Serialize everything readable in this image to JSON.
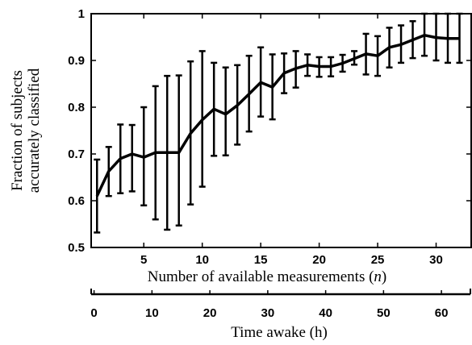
{
  "chart_data": {
    "type": "line",
    "xlabel_parts": [
      "Number of available measurements (",
      "n",
      ")"
    ],
    "xlabel2": "Time awake (h)",
    "ylabel_line1": "Fraction of subjects",
    "ylabel_line2": "accurately classified",
    "xlim": [
      0.5,
      33
    ],
    "ylim": [
      0.5,
      1
    ],
    "xticks": [
      5,
      10,
      15,
      20,
      25,
      30
    ],
    "yticks": [
      0.5,
      0.6,
      0.7,
      0.8,
      0.9,
      1
    ],
    "ytick_labels": [
      "0.5",
      "0.6",
      "0.7",
      "0.8",
      "0.9",
      "1"
    ],
    "x2lim": [
      -0.5,
      65
    ],
    "x2ticks": [
      0,
      10,
      20,
      30,
      40,
      50,
      60
    ],
    "grid": false,
    "series": [
      {
        "x": [
          1,
          2,
          3,
          4,
          5,
          6,
          7,
          8,
          9,
          10,
          11,
          12,
          13,
          14,
          15,
          16,
          17,
          18,
          19,
          20,
          21,
          22,
          23,
          24,
          25,
          26,
          27,
          28,
          29,
          30,
          31,
          32
        ],
        "y": [
          0.61,
          0.663,
          0.69,
          0.7,
          0.693,
          0.703,
          0.703,
          0.703,
          0.744,
          0.773,
          0.796,
          0.785,
          0.804,
          0.828,
          0.853,
          0.843,
          0.873,
          0.883,
          0.89,
          0.887,
          0.887,
          0.894,
          0.904,
          0.914,
          0.91,
          0.928,
          0.934,
          0.944,
          0.954,
          0.949,
          0.947,
          0.947
        ],
        "err_low": [
          0.532,
          0.61,
          0.616,
          0.62,
          0.59,
          0.56,
          0.538,
          0.547,
          0.592,
          0.63,
          0.696,
          0.697,
          0.72,
          0.748,
          0.78,
          0.774,
          0.83,
          0.842,
          0.867,
          0.865,
          0.866,
          0.876,
          0.891,
          0.87,
          0.867,
          0.885,
          0.895,
          0.905,
          0.91,
          0.9,
          0.895,
          0.895
        ],
        "err_high": [
          0.688,
          0.715,
          0.763,
          0.762,
          0.8,
          0.845,
          0.867,
          0.868,
          0.898,
          0.92,
          0.895,
          0.885,
          0.89,
          0.91,
          0.928,
          0.913,
          0.915,
          0.92,
          0.913,
          0.907,
          0.907,
          0.912,
          0.92,
          0.957,
          0.952,
          0.97,
          0.975,
          0.984,
          1.0,
          1.0,
          1.0,
          1.0
        ]
      }
    ]
  }
}
